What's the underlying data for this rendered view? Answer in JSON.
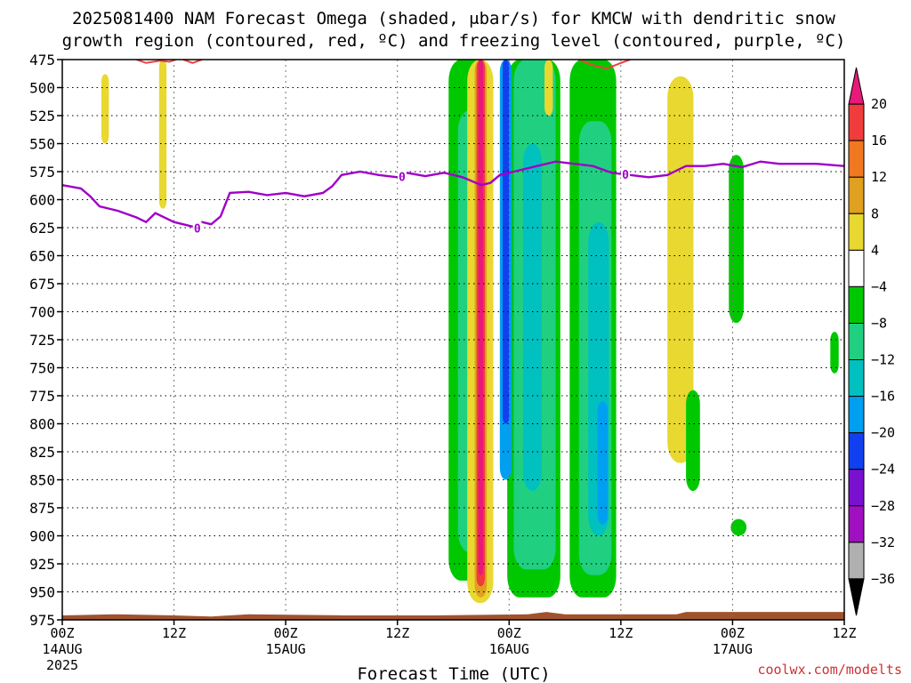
{
  "chart_data": {
    "type": "heatmap",
    "title_lines": [
      "2025081400 NAM Forecast Omega (shaded, μbar/s) for KMCW with dendritic snow",
      "growth region (contoured, red, ºC) and freezing level (contoured, purple, ºC)"
    ],
    "xlabel": "Forecast Time (UTC)",
    "credit": "coolwx.com/modelts",
    "x_range_hours": [
      0,
      84
    ],
    "x_ticks": [
      {
        "h": 0,
        "label": "00Z",
        "date": "14AUG",
        "year": "2025"
      },
      {
        "h": 12,
        "label": "12Z",
        "date": "",
        "year": ""
      },
      {
        "h": 24,
        "label": "00Z",
        "date": "15AUG",
        "year": ""
      },
      {
        "h": 36,
        "label": "12Z",
        "date": "",
        "year": ""
      },
      {
        "h": 48,
        "label": "00Z",
        "date": "16AUG",
        "year": ""
      },
      {
        "h": 60,
        "label": "12Z",
        "date": "",
        "year": ""
      },
      {
        "h": 72,
        "label": "00Z",
        "date": "17AUG",
        "year": ""
      },
      {
        "h": 84,
        "label": "12Z",
        "date": "",
        "year": ""
      }
    ],
    "y_range_hpa": [
      475,
      975
    ],
    "y_ticks": [
      "475",
      "500",
      "525",
      "550",
      "575",
      "600",
      "625",
      "650",
      "675",
      "700",
      "725",
      "750",
      "775",
      "800",
      "825",
      "850",
      "875",
      "900",
      "925",
      "950",
      "975"
    ],
    "grid": true,
    "colorbar": {
      "labels": [
        "20",
        "16",
        "12",
        "8",
        "4",
        "−4",
        "−8",
        "−12",
        "−16",
        "−20",
        "−24",
        "−28",
        "−32",
        "−36"
      ],
      "colors": [
        "#e8197a",
        "#f03c3c",
        "#f07820",
        "#e0a020",
        "#e8d830",
        "#ffffff",
        "#00c800",
        "#20d080",
        "#00c0c0",
        "#00a0f0",
        "#1040f0",
        "#7a10d0",
        "#a010c0",
        "#b0b0b0",
        "#000000"
      ]
    },
    "freezing_level": {
      "label": "0",
      "color": "#a000c8",
      "points": [
        [
          0,
          587
        ],
        [
          2,
          590
        ],
        [
          3,
          597
        ],
        [
          4,
          606
        ],
        [
          6,
          610
        ],
        [
          8,
          616
        ],
        [
          9,
          620
        ],
        [
          10,
          612
        ],
        [
          11,
          616
        ],
        [
          12,
          620
        ],
        [
          14,
          624
        ],
        [
          15,
          620
        ],
        [
          16,
          622
        ],
        [
          17,
          615
        ],
        [
          18,
          594
        ],
        [
          20,
          593
        ],
        [
          22,
          596
        ],
        [
          24,
          594
        ],
        [
          26,
          597
        ],
        [
          28,
          594
        ],
        [
          29,
          588
        ],
        [
          30,
          578
        ],
        [
          32,
          575
        ],
        [
          34,
          578
        ],
        [
          36,
          580
        ],
        [
          37,
          576
        ],
        [
          39,
          579
        ],
        [
          41,
          576
        ],
        [
          43,
          580
        ],
        [
          45,
          587
        ],
        [
          46,
          585
        ],
        [
          47,
          578
        ],
        [
          49,
          574
        ],
        [
          51,
          570
        ],
        [
          53,
          566
        ],
        [
          55,
          568
        ],
        [
          57,
          570
        ],
        [
          59,
          576
        ],
        [
          61,
          578
        ],
        [
          63,
          580
        ],
        [
          65,
          578
        ],
        [
          67,
          570
        ],
        [
          69,
          570
        ],
        [
          71,
          568
        ],
        [
          73,
          571
        ],
        [
          75,
          566
        ],
        [
          77,
          568
        ],
        [
          79,
          568
        ],
        [
          81,
          568
        ],
        [
          84,
          570
        ]
      ]
    },
    "dgz_contours": {
      "color": "#f04040",
      "segments": [
        [
          [
            8.0,
            475
          ],
          [
            9.0,
            478
          ],
          [
            10.5,
            476
          ],
          [
            11.5,
            477
          ],
          [
            12.5,
            474
          ]
        ],
        [
          [
            13.0,
            475
          ],
          [
            14.0,
            478
          ],
          [
            15.0,
            475
          ]
        ],
        [
          [
            55.5,
            475
          ],
          [
            57.0,
            480
          ],
          [
            58.5,
            483
          ],
          [
            60.0,
            478
          ],
          [
            61.0,
            475
          ]
        ]
      ]
    },
    "omega_fields": [
      {
        "value": -5,
        "color": "#00c800",
        "x0": 41.5,
        "x1": 46.0,
        "p0": 475,
        "p1": 940
      },
      {
        "value": -5,
        "color": "#00c800",
        "x0": 47.8,
        "x1": 53.5,
        "p0": 475,
        "p1": 955
      },
      {
        "value": -5,
        "color": "#00c800",
        "x0": 54.5,
        "x1": 59.5,
        "p0": 475,
        "p1": 955
      },
      {
        "value": -9,
        "color": "#20d080",
        "x0": 42.5,
        "x1": 45.6,
        "p0": 520,
        "p1": 915
      },
      {
        "value": -9,
        "color": "#20d080",
        "x0": 48.5,
        "x1": 53.0,
        "p0": 475,
        "p1": 930
      },
      {
        "value": -9,
        "color": "#20d080",
        "x0": 55.5,
        "x1": 59.0,
        "p0": 530,
        "p1": 935
      },
      {
        "value": -13,
        "color": "#00c0c0",
        "x0": 49.5,
        "x1": 51.5,
        "p0": 550,
        "p1": 860
      },
      {
        "value": -13,
        "color": "#00c0c0",
        "x0": 56.5,
        "x1": 58.7,
        "p0": 620,
        "p1": 900
      },
      {
        "value": -17,
        "color": "#00a0f0",
        "x0": 47.0,
        "x1": 48.3,
        "p0": 475,
        "p1": 850
      },
      {
        "value": -17,
        "color": "#00a0f0",
        "x0": 57.5,
        "x1": 58.6,
        "p0": 780,
        "p1": 890
      },
      {
        "value": -22,
        "color": "#1040f0",
        "x0": 47.3,
        "x1": 48.0,
        "p0": 475,
        "p1": 800
      },
      {
        "value": 5,
        "color": "#e8d830",
        "x0": 43.5,
        "x1": 46.3,
        "p0": 475,
        "p1": 960
      },
      {
        "value": 9,
        "color": "#e0a020",
        "x0": 44.3,
        "x1": 45.6,
        "p0": 475,
        "p1": 955
      },
      {
        "value": 17,
        "color": "#f03c3c",
        "x0": 44.5,
        "x1": 45.4,
        "p0": 475,
        "p1": 945
      },
      {
        "value": 20,
        "color": "#e8197a",
        "x0": 44.7,
        "x1": 45.2,
        "p0": 475,
        "p1": 935
      },
      {
        "value": 5,
        "color": "#e8d830",
        "x0": 4.2,
        "x1": 5.0,
        "p0": 488,
        "p1": 550
      },
      {
        "value": 5,
        "color": "#e8d830",
        "x0": 10.4,
        "x1": 11.2,
        "p0": 475,
        "p1": 608
      },
      {
        "value": 5,
        "color": "#e8d830",
        "x0": 51.8,
        "x1": 52.7,
        "p0": 475,
        "p1": 525
      },
      {
        "value": 5,
        "color": "#e8d830",
        "x0": 65.0,
        "x1": 67.8,
        "p0": 490,
        "p1": 835
      },
      {
        "value": -5,
        "color": "#00c800",
        "x0": 67.0,
        "x1": 68.5,
        "p0": 770,
        "p1": 860
      },
      {
        "value": -5,
        "color": "#00c800",
        "x0": 71.6,
        "x1": 73.2,
        "p0": 560,
        "p1": 710
      },
      {
        "value": -5,
        "color": "#00c800",
        "x0": 82.5,
        "x1": 83.4,
        "p0": 718,
        "p1": 755
      },
      {
        "value": -5,
        "color": "#00c800",
        "x0": 71.8,
        "x1": 73.5,
        "p0": 885,
        "p1": 900
      }
    ],
    "terrain": {
      "color": "#a0522d",
      "points": [
        [
          0,
          971
        ],
        [
          6,
          970
        ],
        [
          12,
          971
        ],
        [
          16,
          972
        ],
        [
          20,
          970
        ],
        [
          30,
          971
        ],
        [
          40,
          971
        ],
        [
          50,
          970
        ],
        [
          52,
          968
        ],
        [
          54,
          970
        ],
        [
          60,
          970
        ],
        [
          66,
          970
        ],
        [
          67,
          968
        ],
        [
          75,
          968
        ],
        [
          84,
          968
        ]
      ]
    }
  }
}
